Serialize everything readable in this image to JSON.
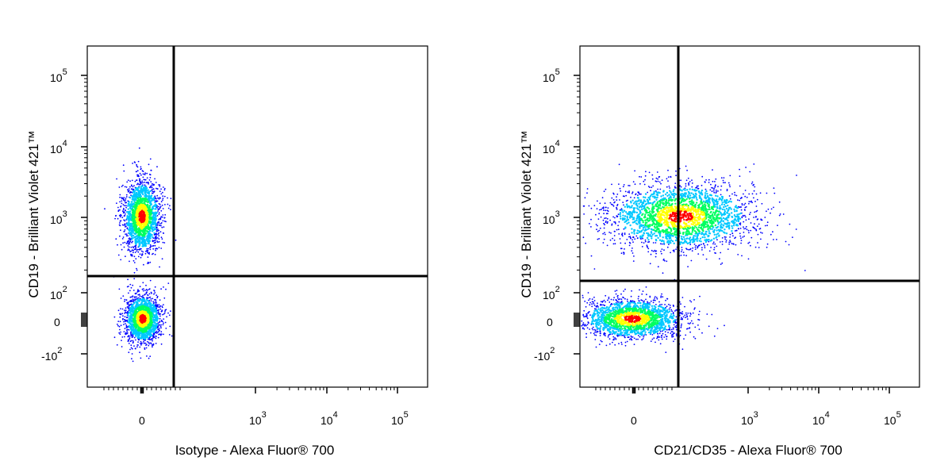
{
  "chart_data": [
    {
      "type": "scatter",
      "subtype": "flow-cytometry-density",
      "xlabel": "Isotype - Alexa Fluor® 700",
      "ylabel": "CD19 - Brilliant Violet 421™",
      "x_ticks": [
        {
          "base": "0",
          "exp": ""
        },
        {
          "base": "10",
          "exp": "3"
        },
        {
          "base": "10",
          "exp": "4"
        },
        {
          "base": "10",
          "exp": "5"
        }
      ],
      "y_ticks": [
        {
          "base": "10",
          "exp": "5"
        },
        {
          "base": "10",
          "exp": "4"
        },
        {
          "base": "10",
          "exp": "3"
        },
        {
          "base": "10",
          "exp": "2"
        },
        {
          "base": "0",
          "exp": ""
        },
        {
          "base": "-10",
          "exp": "2"
        }
      ],
      "scale": "biexponential",
      "quadrant_gate": {
        "x": 150,
        "y": 180
      },
      "populations": [
        {
          "name": "",
          "x_center": 0,
          "y_center": 1000,
          "x_spread": "narrow",
          "y_spread": "medium",
          "count": 3200
        },
        {
          "name": "",
          "x_center": 0,
          "y_center": 0,
          "x_spread": "narrow",
          "y_spread": "narrow",
          "count": 2800
        }
      ]
    },
    {
      "type": "scatter",
      "subtype": "flow-cytometry-density",
      "xlabel": "CD21/CD35 - Alexa Fluor® 700",
      "ylabel": "CD19 - Brilliant Violet 421™",
      "x_ticks": [
        {
          "base": "0",
          "exp": ""
        },
        {
          "base": "10",
          "exp": "3"
        },
        {
          "base": "10",
          "exp": "4"
        },
        {
          "base": "10",
          "exp": "5"
        }
      ],
      "y_ticks": [
        {
          "base": "10",
          "exp": "5"
        },
        {
          "base": "10",
          "exp": "4"
        },
        {
          "base": "10",
          "exp": "3"
        },
        {
          "base": "10",
          "exp": "2"
        },
        {
          "base": "0",
          "exp": ""
        },
        {
          "base": "-10",
          "exp": "2"
        }
      ],
      "scale": "biexponential",
      "quadrant_gate": {
        "x": 180,
        "y": 160
      },
      "populations": [
        {
          "name": "",
          "x_center": 180,
          "y_center": 1000,
          "x_spread": "wide",
          "y_spread": "medium",
          "count": 4200
        },
        {
          "name": "",
          "x_center": 0,
          "y_center": 0,
          "x_spread": "wide",
          "y_spread": "narrow",
          "count": 3200
        }
      ]
    }
  ],
  "colors": {
    "low": "#0000ff",
    "mid_low": "#00c8ff",
    "mid": "#00ff60",
    "mid_high": "#ffff00",
    "high": "#ff0000",
    "gate_line": "#000000",
    "frame": "#000000"
  }
}
